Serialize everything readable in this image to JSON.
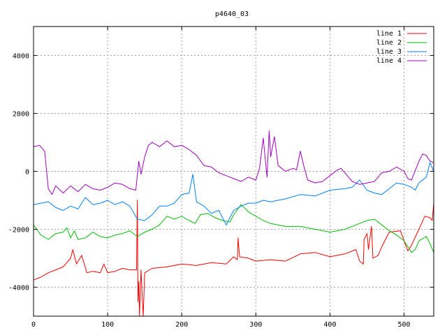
{
  "chart_data": {
    "type": "line",
    "title": "p4640_03",
    "xlim": [
      0,
      540
    ],
    "ylim": [
      -5000,
      5000
    ],
    "x_ticks": [
      0,
      100,
      200,
      300,
      400,
      500
    ],
    "y_ticks": [
      -4000,
      -2000,
      0,
      2000,
      4000
    ],
    "x_tick_labels": [
      "0",
      "100",
      "200",
      "300",
      "400",
      "500"
    ],
    "y_tick_labels": [
      "-4000",
      "-2000",
      "0",
      "2000",
      "4000"
    ],
    "grid": true,
    "legend_position": "top-right",
    "series": [
      {
        "name": "line 1",
        "color": "#ff0000",
        "points": [
          [
            0,
            -3750
          ],
          [
            10,
            -3650
          ],
          [
            20,
            -3500
          ],
          [
            30,
            -3400
          ],
          [
            40,
            -3300
          ],
          [
            50,
            -3000
          ],
          [
            53,
            -2700
          ],
          [
            58,
            -3200
          ],
          [
            65,
            -2900
          ],
          [
            72,
            -3500
          ],
          [
            80,
            -3450
          ],
          [
            90,
            -3500
          ],
          [
            95,
            -3200
          ],
          [
            100,
            -3500
          ],
          [
            110,
            -3450
          ],
          [
            120,
            -3350
          ],
          [
            130,
            -3400
          ],
          [
            139,
            -3400
          ],
          [
            140,
            -1000
          ],
          [
            141,
            -4500
          ],
          [
            142,
            -3800
          ],
          [
            143,
            -5000
          ],
          [
            145,
            -3400
          ],
          [
            148,
            -5000
          ],
          [
            150,
            -3500
          ],
          [
            160,
            -3350
          ],
          [
            180,
            -3300
          ],
          [
            200,
            -3200
          ],
          [
            220,
            -3250
          ],
          [
            240,
            -3150
          ],
          [
            260,
            -3200
          ],
          [
            270,
            -2950
          ],
          [
            275,
            -3050
          ],
          [
            276,
            -2300
          ],
          [
            278,
            -2950
          ],
          [
            290,
            -3000
          ],
          [
            300,
            -3100
          ],
          [
            320,
            -3050
          ],
          [
            340,
            -3100
          ],
          [
            360,
            -2850
          ],
          [
            380,
            -2800
          ],
          [
            400,
            -2950
          ],
          [
            420,
            -2850
          ],
          [
            435,
            -2700
          ],
          [
            440,
            -3100
          ],
          [
            445,
            -3200
          ],
          [
            446,
            -2350
          ],
          [
            450,
            -2150
          ],
          [
            452,
            -2700
          ],
          [
            456,
            -1900
          ],
          [
            458,
            -3000
          ],
          [
            465,
            -2900
          ],
          [
            470,
            -2600
          ],
          [
            480,
            -2100
          ],
          [
            495,
            -2050
          ],
          [
            500,
            -2400
          ],
          [
            505,
            -2750
          ],
          [
            510,
            -2550
          ],
          [
            520,
            -2000
          ],
          [
            528,
            -1550
          ],
          [
            535,
            -1600
          ],
          [
            538,
            -1700
          ],
          [
            540,
            -1100
          ]
        ]
      },
      {
        "name": "line 2",
        "color": "#00c000",
        "points": [
          [
            0,
            -1850
          ],
          [
            10,
            -2200
          ],
          [
            20,
            -2350
          ],
          [
            30,
            -2150
          ],
          [
            40,
            -2100
          ],
          [
            45,
            -1950
          ],
          [
            50,
            -2300
          ],
          [
            55,
            -2050
          ],
          [
            60,
            -2350
          ],
          [
            70,
            -2300
          ],
          [
            80,
            -2100
          ],
          [
            90,
            -2250
          ],
          [
            100,
            -2300
          ],
          [
            110,
            -2200
          ],
          [
            120,
            -2150
          ],
          [
            130,
            -2050
          ],
          [
            140,
            -2250
          ],
          [
            150,
            -2100
          ],
          [
            160,
            -2000
          ],
          [
            170,
            -1850
          ],
          [
            180,
            -1550
          ],
          [
            190,
            -1650
          ],
          [
            200,
            -1550
          ],
          [
            210,
            -1700
          ],
          [
            218,
            -1800
          ],
          [
            225,
            -1500
          ],
          [
            235,
            -1450
          ],
          [
            245,
            -1600
          ],
          [
            255,
            -1700
          ],
          [
            265,
            -1750
          ],
          [
            270,
            -1500
          ],
          [
            280,
            -1150
          ],
          [
            290,
            -1400
          ],
          [
            300,
            -1550
          ],
          [
            310,
            -1700
          ],
          [
            320,
            -1800
          ],
          [
            340,
            -1900
          ],
          [
            360,
            -1900
          ],
          [
            380,
            -2000
          ],
          [
            400,
            -2100
          ],
          [
            420,
            -2000
          ],
          [
            440,
            -1800
          ],
          [
            450,
            -1700
          ],
          [
            460,
            -1650
          ],
          [
            470,
            -1850
          ],
          [
            480,
            -2050
          ],
          [
            490,
            -2200
          ],
          [
            500,
            -2400
          ],
          [
            510,
            -2800
          ],
          [
            515,
            -2700
          ],
          [
            520,
            -2400
          ],
          [
            530,
            -2250
          ],
          [
            535,
            -2500
          ],
          [
            540,
            -2800
          ]
        ]
      },
      {
        "name": "line 3",
        "color": "#0080ff",
        "points": [
          [
            0,
            -1150
          ],
          [
            10,
            -1100
          ],
          [
            20,
            -1050
          ],
          [
            30,
            -1250
          ],
          [
            40,
            -1350
          ],
          [
            50,
            -1200
          ],
          [
            60,
            -1300
          ],
          [
            70,
            -900
          ],
          [
            80,
            -1150
          ],
          [
            90,
            -1100
          ],
          [
            100,
            -1000
          ],
          [
            110,
            -1150
          ],
          [
            120,
            -1050
          ],
          [
            130,
            -1200
          ],
          [
            140,
            -1650
          ],
          [
            150,
            -1700
          ],
          [
            160,
            -1500
          ],
          [
            170,
            -1200
          ],
          [
            180,
            -1200
          ],
          [
            190,
            -1100
          ],
          [
            200,
            -800
          ],
          [
            210,
            -750
          ],
          [
            215,
            -100
          ],
          [
            220,
            -1050
          ],
          [
            230,
            -1200
          ],
          [
            240,
            -1450
          ],
          [
            250,
            -1350
          ],
          [
            260,
            -1850
          ],
          [
            270,
            -1350
          ],
          [
            280,
            -1200
          ],
          [
            290,
            -1100
          ],
          [
            300,
            -1100
          ],
          [
            310,
            -1000
          ],
          [
            320,
            -1050
          ],
          [
            340,
            -950
          ],
          [
            360,
            -800
          ],
          [
            380,
            -850
          ],
          [
            400,
            -650
          ],
          [
            420,
            -600
          ],
          [
            430,
            -550
          ],
          [
            440,
            -300
          ],
          [
            450,
            -650
          ],
          [
            460,
            -750
          ],
          [
            470,
            -800
          ],
          [
            480,
            -600
          ],
          [
            490,
            -400
          ],
          [
            500,
            -450
          ],
          [
            510,
            -550
          ],
          [
            515,
            -650
          ],
          [
            520,
            -400
          ],
          [
            530,
            -200
          ],
          [
            535,
            300
          ],
          [
            540,
            0
          ]
        ]
      },
      {
        "name": "line 4",
        "color": "#a000c0",
        "points": [
          [
            0,
            850
          ],
          [
            8,
            900
          ],
          [
            15,
            700
          ],
          [
            20,
            -600
          ],
          [
            25,
            -800
          ],
          [
            30,
            -500
          ],
          [
            40,
            -750
          ],
          [
            50,
            -500
          ],
          [
            60,
            -700
          ],
          [
            70,
            -450
          ],
          [
            80,
            -600
          ],
          [
            90,
            -650
          ],
          [
            100,
            -550
          ],
          [
            110,
            -400
          ],
          [
            120,
            -450
          ],
          [
            130,
            -600
          ],
          [
            138,
            -650
          ],
          [
            140,
            -150
          ],
          [
            142,
            350
          ],
          [
            145,
            -100
          ],
          [
            150,
            500
          ],
          [
            155,
            900
          ],
          [
            160,
            1000
          ],
          [
            170,
            850
          ],
          [
            180,
            1050
          ],
          [
            190,
            850
          ],
          [
            200,
            900
          ],
          [
            210,
            750
          ],
          [
            220,
            550
          ],
          [
            230,
            200
          ],
          [
            240,
            150
          ],
          [
            250,
            -50
          ],
          [
            260,
            -150
          ],
          [
            270,
            -250
          ],
          [
            280,
            -350
          ],
          [
            290,
            -200
          ],
          [
            300,
            -300
          ],
          [
            305,
            100
          ],
          [
            310,
            1150
          ],
          [
            315,
            -200
          ],
          [
            318,
            1400
          ],
          [
            320,
            500
          ],
          [
            325,
            1200
          ],
          [
            330,
            200
          ],
          [
            340,
            0
          ],
          [
            350,
            100
          ],
          [
            355,
            50
          ],
          [
            360,
            700
          ],
          [
            365,
            150
          ],
          [
            370,
            -300
          ],
          [
            380,
            -400
          ],
          [
            390,
            -350
          ],
          [
            400,
            -150
          ],
          [
            410,
            50
          ],
          [
            415,
            100
          ],
          [
            420,
            -50
          ],
          [
            430,
            -350
          ],
          [
            440,
            -450
          ],
          [
            450,
            -400
          ],
          [
            460,
            -350
          ],
          [
            470,
            -50
          ],
          [
            480,
            0
          ],
          [
            490,
            150
          ],
          [
            500,
            0
          ],
          [
            505,
            -250
          ],
          [
            510,
            -300
          ],
          [
            520,
            350
          ],
          [
            525,
            600
          ],
          [
            530,
            550
          ],
          [
            535,
            350
          ],
          [
            540,
            300
          ]
        ]
      }
    ]
  }
}
